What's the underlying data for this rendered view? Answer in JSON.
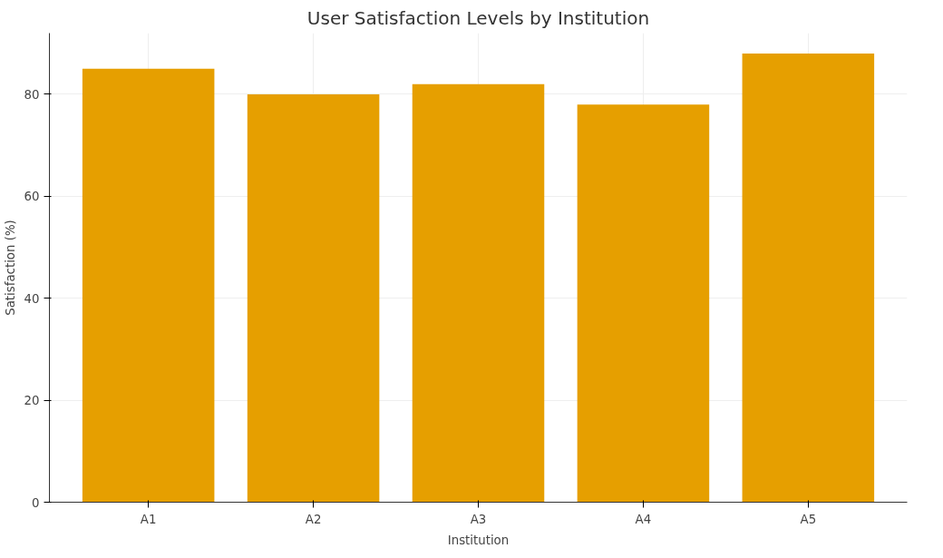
{
  "chart_data": {
    "type": "bar",
    "title": "User Satisfaction Levels by Institution",
    "xlabel": "Institution",
    "ylabel": "Satisfaction (%)",
    "categories": [
      "A1",
      "A2",
      "A3",
      "A4",
      "A5"
    ],
    "values": [
      85,
      80,
      82,
      78,
      88
    ],
    "color": "#e69f00",
    "ylim": [
      0,
      92
    ],
    "yticks": [
      0,
      20,
      40,
      60,
      80
    ],
    "grid": true
  }
}
